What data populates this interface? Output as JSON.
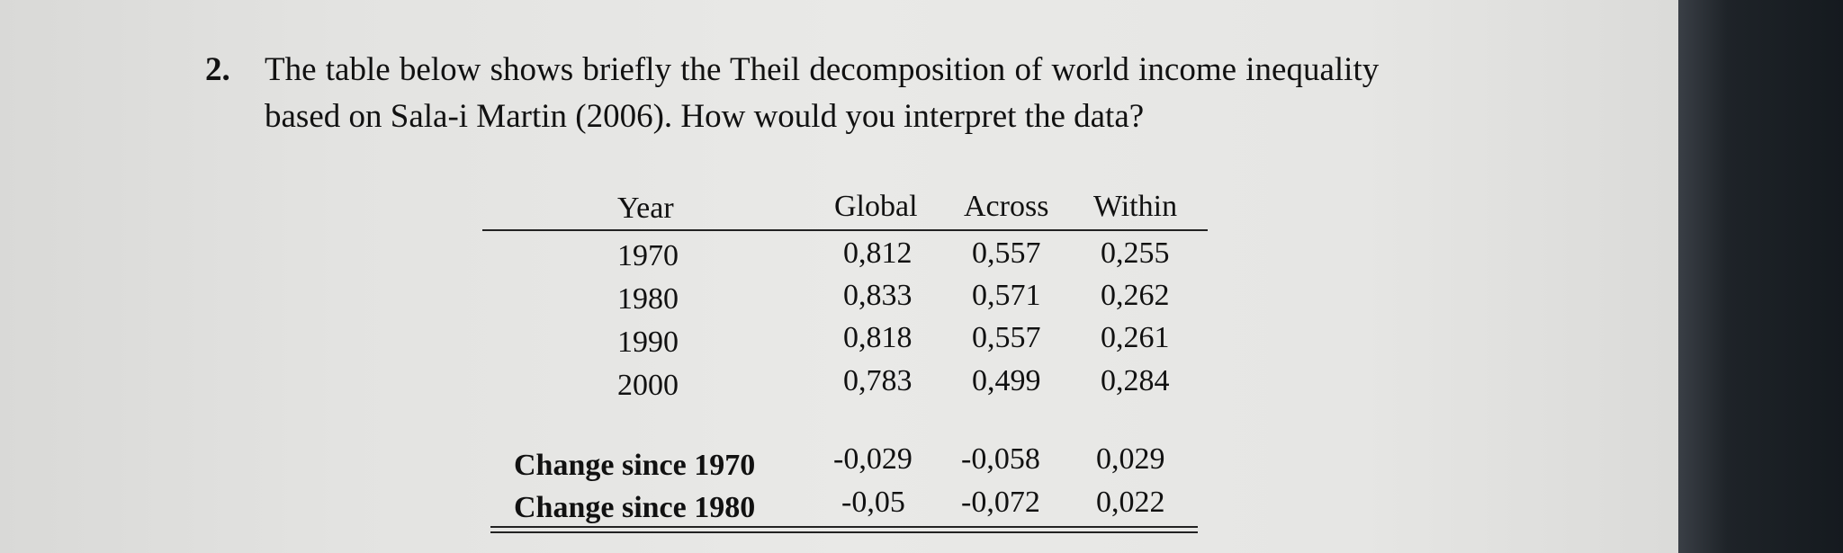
{
  "question": {
    "number": "2.",
    "line1": "The table below shows briefly the Theil decomposition of world income inequality",
    "line2": "based on Sala-i Martin (2006). How would you interpret the data?"
  },
  "table": {
    "headers": [
      "Year",
      "Global",
      "Across",
      "Within"
    ],
    "rows": [
      [
        "1970",
        "0,812",
        "0,557",
        "0,255"
      ],
      [
        "1980",
        "0,833",
        "0,571",
        "0,262"
      ],
      [
        "1990",
        "0,818",
        "0,557",
        "0,261"
      ],
      [
        "2000",
        "0,783",
        "0,499",
        "0,284"
      ]
    ],
    "summary_rows": [
      [
        "Change since 1970",
        "-0,029",
        "-0,058",
        "0,029"
      ],
      [
        "Change since 1980",
        "-0,05",
        "-0,072",
        "0,022"
      ]
    ]
  }
}
